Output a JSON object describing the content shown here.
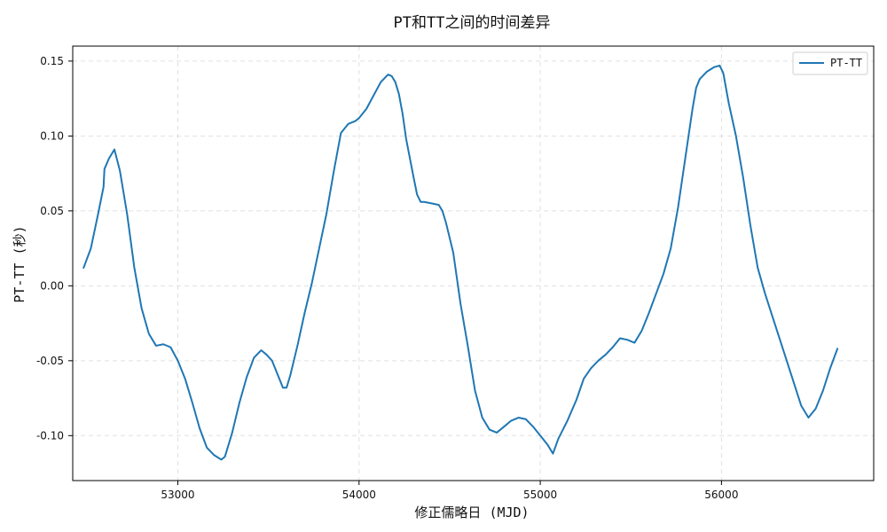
{
  "chart_data": {
    "type": "line",
    "title": "PT和TT之间的时间差异",
    "xlabel": "修正儒略日 (MJD)",
    "ylabel": "PT-TT (秒)",
    "xlim": [
      52420,
      56840
    ],
    "ylim": [
      -0.13,
      0.16
    ],
    "xticks": [
      53000,
      54000,
      55000,
      56000
    ],
    "xtick_labels": [
      "53000",
      "54000",
      "55000",
      "56000"
    ],
    "yticks": [
      -0.1,
      -0.05,
      0.0,
      0.05,
      0.1,
      0.15
    ],
    "ytick_labels": [
      "-0.10",
      "-0.05",
      "0.00",
      "0.05",
      "0.10",
      "0.15"
    ],
    "grid": true,
    "legend": {
      "placement": "top-right",
      "entries": [
        "PT-TT"
      ]
    },
    "colors": {
      "line": "#1f77b4",
      "axis": "#000000",
      "grid": "#d9d9d9"
    },
    "series": [
      {
        "name": "PT-TT",
        "x": [
          52480,
          52520,
          52560,
          52590,
          52595,
          52620,
          52650,
          52680,
          52720,
          52760,
          52800,
          52840,
          52880,
          52920,
          52960,
          53000,
          53040,
          53080,
          53120,
          53160,
          53200,
          53240,
          53260,
          53300,
          53340,
          53380,
          53420,
          53460,
          53490,
          53520,
          53560,
          53580,
          53600,
          53620,
          53660,
          53700,
          53740,
          53780,
          53820,
          53860,
          53900,
          53940,
          53980,
          54000,
          54040,
          54080,
          54120,
          54160,
          54180,
          54200,
          54220,
          54240,
          54260,
          54300,
          54320,
          54340,
          54360,
          54400,
          54440,
          54460,
          54480,
          54520,
          54560,
          54600,
          54640,
          54680,
          54720,
          54760,
          54800,
          54840,
          54880,
          54920,
          54960,
          55000,
          55040,
          55070,
          55100,
          55150,
          55200,
          55240,
          55280,
          55320,
          55360,
          55400,
          55440,
          55480,
          55520,
          55560,
          55600,
          55640,
          55680,
          55720,
          55760,
          55800,
          55840,
          55860,
          55880,
          55920,
          55960,
          55990,
          56010,
          56040,
          56080,
          56120,
          56160,
          56200,
          56240,
          56280,
          56320,
          56360,
          56400,
          56440,
          56480,
          56520,
          56560,
          56600,
          56640
        ],
        "values": [
          0.012,
          0.025,
          0.048,
          0.066,
          0.078,
          0.085,
          0.091,
          0.077,
          0.048,
          0.012,
          -0.015,
          -0.032,
          -0.04,
          -0.039,
          -0.041,
          -0.05,
          -0.062,
          -0.078,
          -0.095,
          -0.108,
          -0.113,
          -0.116,
          -0.114,
          -0.098,
          -0.078,
          -0.061,
          -0.048,
          -0.043,
          -0.046,
          -0.05,
          -0.062,
          -0.068,
          -0.068,
          -0.06,
          -0.04,
          -0.018,
          0.002,
          0.025,
          0.048,
          0.076,
          0.102,
          0.108,
          0.11,
          0.112,
          0.118,
          0.127,
          0.136,
          0.141,
          0.14,
          0.136,
          0.128,
          0.115,
          0.098,
          0.073,
          0.061,
          0.056,
          0.056,
          0.055,
          0.054,
          0.05,
          0.042,
          0.022,
          -0.012,
          -0.04,
          -0.07,
          -0.088,
          -0.096,
          -0.098,
          -0.094,
          -0.09,
          -0.088,
          -0.089,
          -0.094,
          -0.1,
          -0.106,
          -0.112,
          -0.102,
          -0.09,
          -0.076,
          -0.062,
          -0.055,
          -0.05,
          -0.046,
          -0.041,
          -0.035,
          -0.036,
          -0.038,
          -0.03,
          -0.018,
          -0.005,
          0.008,
          0.025,
          0.052,
          0.085,
          0.118,
          0.132,
          0.138,
          0.143,
          0.146,
          0.147,
          0.142,
          0.122,
          0.1,
          0.072,
          0.04,
          0.012,
          -0.005,
          -0.02,
          -0.035,
          -0.05,
          -0.065,
          -0.08,
          -0.088,
          -0.082,
          -0.07,
          -0.055,
          -0.042
        ]
      }
    ]
  }
}
